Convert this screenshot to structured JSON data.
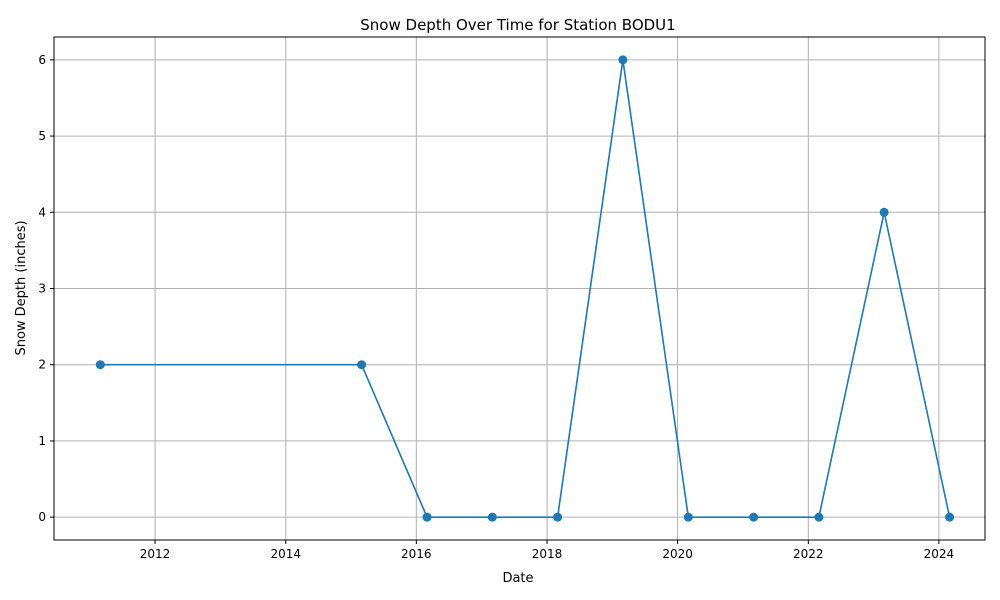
{
  "chart_data": {
    "type": "line",
    "title": "Snow Depth Over Time for Station BODU1",
    "xlabel": "Date",
    "ylabel": "Snow Depth (inches)",
    "x_axis_type": "date",
    "xlim": [
      "2010-06-15",
      "2024-09-15"
    ],
    "ylim": [
      -0.3,
      6.3
    ],
    "x_ticks": [
      {
        "date": "2012-01-01",
        "label": "2012"
      },
      {
        "date": "2014-01-01",
        "label": "2014"
      },
      {
        "date": "2016-01-01",
        "label": "2016"
      },
      {
        "date": "2018-01-01",
        "label": "2018"
      },
      {
        "date": "2020-01-01",
        "label": "2020"
      },
      {
        "date": "2022-01-01",
        "label": "2022"
      },
      {
        "date": "2024-01-01",
        "label": "2024"
      }
    ],
    "y_ticks": [
      0,
      1,
      2,
      3,
      4,
      5,
      6
    ],
    "grid": true,
    "legend": "none",
    "series": [
      {
        "color": "#1f77b4",
        "marker": "circle",
        "x": [
          "2011-03-01",
          "2015-03-01",
          "2016-03-01",
          "2017-03-01",
          "2018-03-01",
          "2019-03-01",
          "2020-03-01",
          "2021-03-01",
          "2022-03-01",
          "2023-03-01",
          "2024-03-01"
        ],
        "y": [
          2,
          2,
          0,
          0,
          0,
          6,
          0,
          0,
          0,
          4,
          0
        ]
      }
    ]
  }
}
